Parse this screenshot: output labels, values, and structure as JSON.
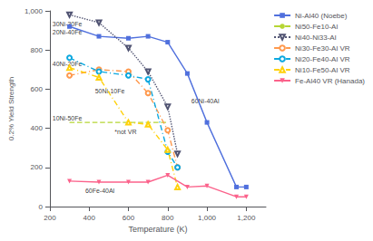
{
  "chart_data": {
    "type": "line",
    "xlabel": "Temperature (K)",
    "ylabel": "0.2% Yield Strength",
    "xlim": [
      200,
      1300
    ],
    "ylim": [
      0,
      1000
    ],
    "xticks": [
      200,
      400,
      600,
      800,
      1000,
      1200
    ],
    "yticks": [
      0,
      200,
      400,
      600,
      800,
      1000
    ],
    "grid": false,
    "legend": "upper right",
    "series": [
      {
        "name": "Ni-Al40 (Noebe)",
        "line_style": "solid",
        "marker": "square",
        "x": [
          300,
          450,
          600,
          700,
          800,
          900,
          1000,
          1150,
          1200
        ],
        "values": [
          920,
          870,
          860,
          870,
          840,
          680,
          430,
          100,
          100
        ]
      },
      {
        "name": "Ni50-Fe10-Al",
        "line_style": "dashed",
        "marker": "none",
        "x": [
          300,
          600,
          800
        ],
        "values": [
          430,
          430,
          430
        ]
      },
      {
        "name": "Ni40-Ni33-Al",
        "line_style": "dotted",
        "marker": "triangle-down-open",
        "x": [
          300,
          450,
          600,
          700,
          800,
          850
        ],
        "values": [
          980,
          940,
          810,
          690,
          510,
          270
        ]
      },
      {
        "name": "Ni30-Fe30-Al VR",
        "line_style": "dashdot",
        "marker": "circle-open",
        "x": [
          300,
          450,
          600,
          700,
          800,
          850
        ],
        "values": [
          670,
          700,
          690,
          580,
          390,
          200
        ]
      },
      {
        "name": "Ni20-Fe40-Al VR",
        "line_style": "dashdot",
        "marker": "circle-open",
        "x": [
          300,
          450,
          600,
          700,
          800,
          850
        ],
        "values": [
          760,
          690,
          670,
          650,
          280,
          200
        ]
      },
      {
        "name": "Ni10-Fe50-Al VR",
        "line_style": "dashdot",
        "marker": "triangle-up-open",
        "x": [
          300,
          450,
          600,
          700,
          800,
          850
        ],
        "values": [
          710,
          660,
          430,
          420,
          290,
          100
        ]
      },
      {
        "name": "Fe-Al40 VR (Hanada)",
        "line_style": "solid",
        "marker": "triangle-down",
        "x": [
          300,
          450,
          600,
          700,
          800,
          900,
          1000,
          1150,
          1200
        ],
        "values": [
          130,
          125,
          125,
          125,
          160,
          100,
          105,
          50,
          50
        ]
      }
    ],
    "annotations": [
      {
        "text": "30Ni-30Fe",
        "x": 213,
        "y": 935
      },
      {
        "text": "20Ni-40Fe",
        "x": 213,
        "y": 890
      },
      {
        "text": "40Ni-20Fe",
        "x": 213,
        "y": 730
      },
      {
        "text": "50Ni-10Fe",
        "x": 430,
        "y": 590
      },
      {
        "text": "10Ni-50Fe",
        "x": 213,
        "y": 450
      },
      {
        "text": "*not VR",
        "x": 530,
        "y": 380
      },
      {
        "text": "60Fe-40Al",
        "x": 380,
        "y": 80
      },
      {
        "text": "60Ni-40Al",
        "x": 920,
        "y": 540
      }
    ]
  }
}
